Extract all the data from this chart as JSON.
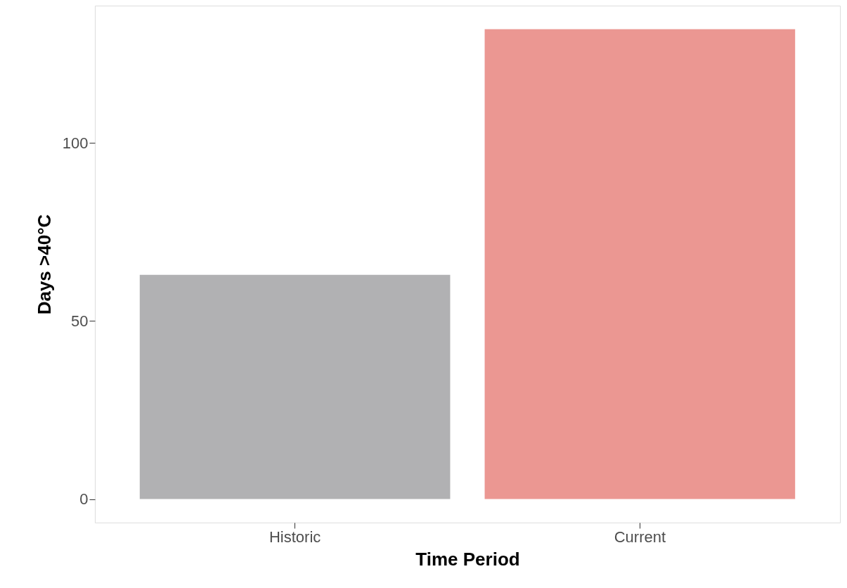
{
  "chart_data": {
    "type": "bar",
    "xlabel": "Time Period",
    "ylabel": "Days >40°C",
    "categories": [
      "Historic",
      "Current"
    ],
    "values": [
      63,
      132
    ],
    "colors": [
      "#b1b1b3",
      "#eb9792"
    ],
    "ylim": [
      -6.6,
      138.6
    ],
    "yticks": [
      0,
      50,
      100
    ],
    "grid": false
  }
}
